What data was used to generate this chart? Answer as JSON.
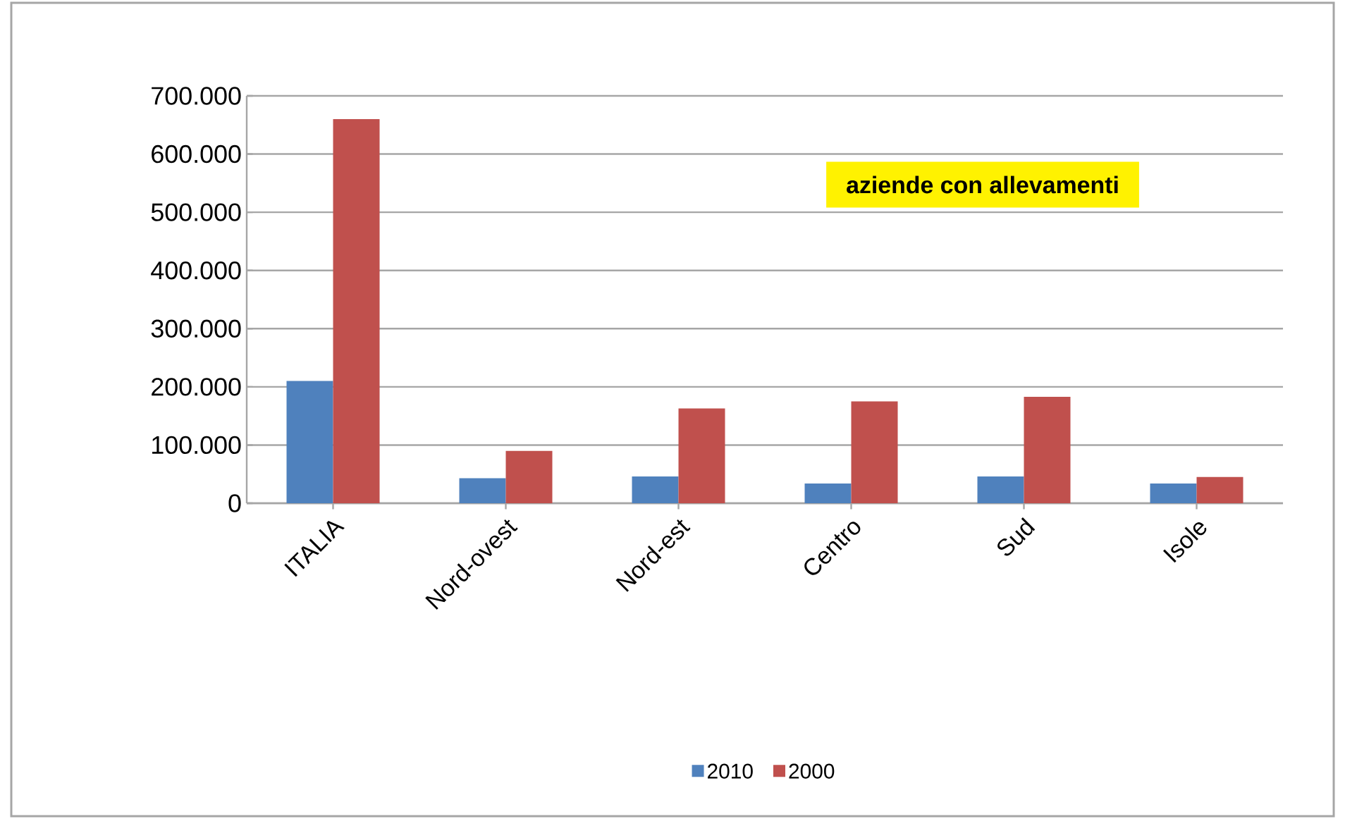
{
  "chart_data": {
    "type": "bar",
    "title": "aziende con allevamenti",
    "categories": [
      "ITALIA",
      "Nord-ovest",
      "Nord-est",
      "Centro",
      "Sud",
      "Isole"
    ],
    "series": [
      {
        "name": "2010",
        "color": "#4f81bd",
        "values": [
          210000,
          43000,
          46000,
          34000,
          46000,
          34000
        ]
      },
      {
        "name": "2000",
        "color": "#c0504d",
        "values": [
          660000,
          90000,
          163000,
          175000,
          183000,
          45000
        ]
      }
    ],
    "ylim": [
      0,
      700000
    ],
    "yticks": [
      {
        "value": 0,
        "label": "0"
      },
      {
        "value": 100000,
        "label": "100.000"
      },
      {
        "value": 200000,
        "label": "200.000"
      },
      {
        "value": 300000,
        "label": "300.000"
      },
      {
        "value": 400000,
        "label": "400.000"
      },
      {
        "value": 500000,
        "label": "500.000"
      },
      {
        "value": 600000,
        "label": "600.000"
      },
      {
        "value": 700000,
        "label": "700.000"
      }
    ],
    "grid": "y",
    "legend": "bottom"
  }
}
